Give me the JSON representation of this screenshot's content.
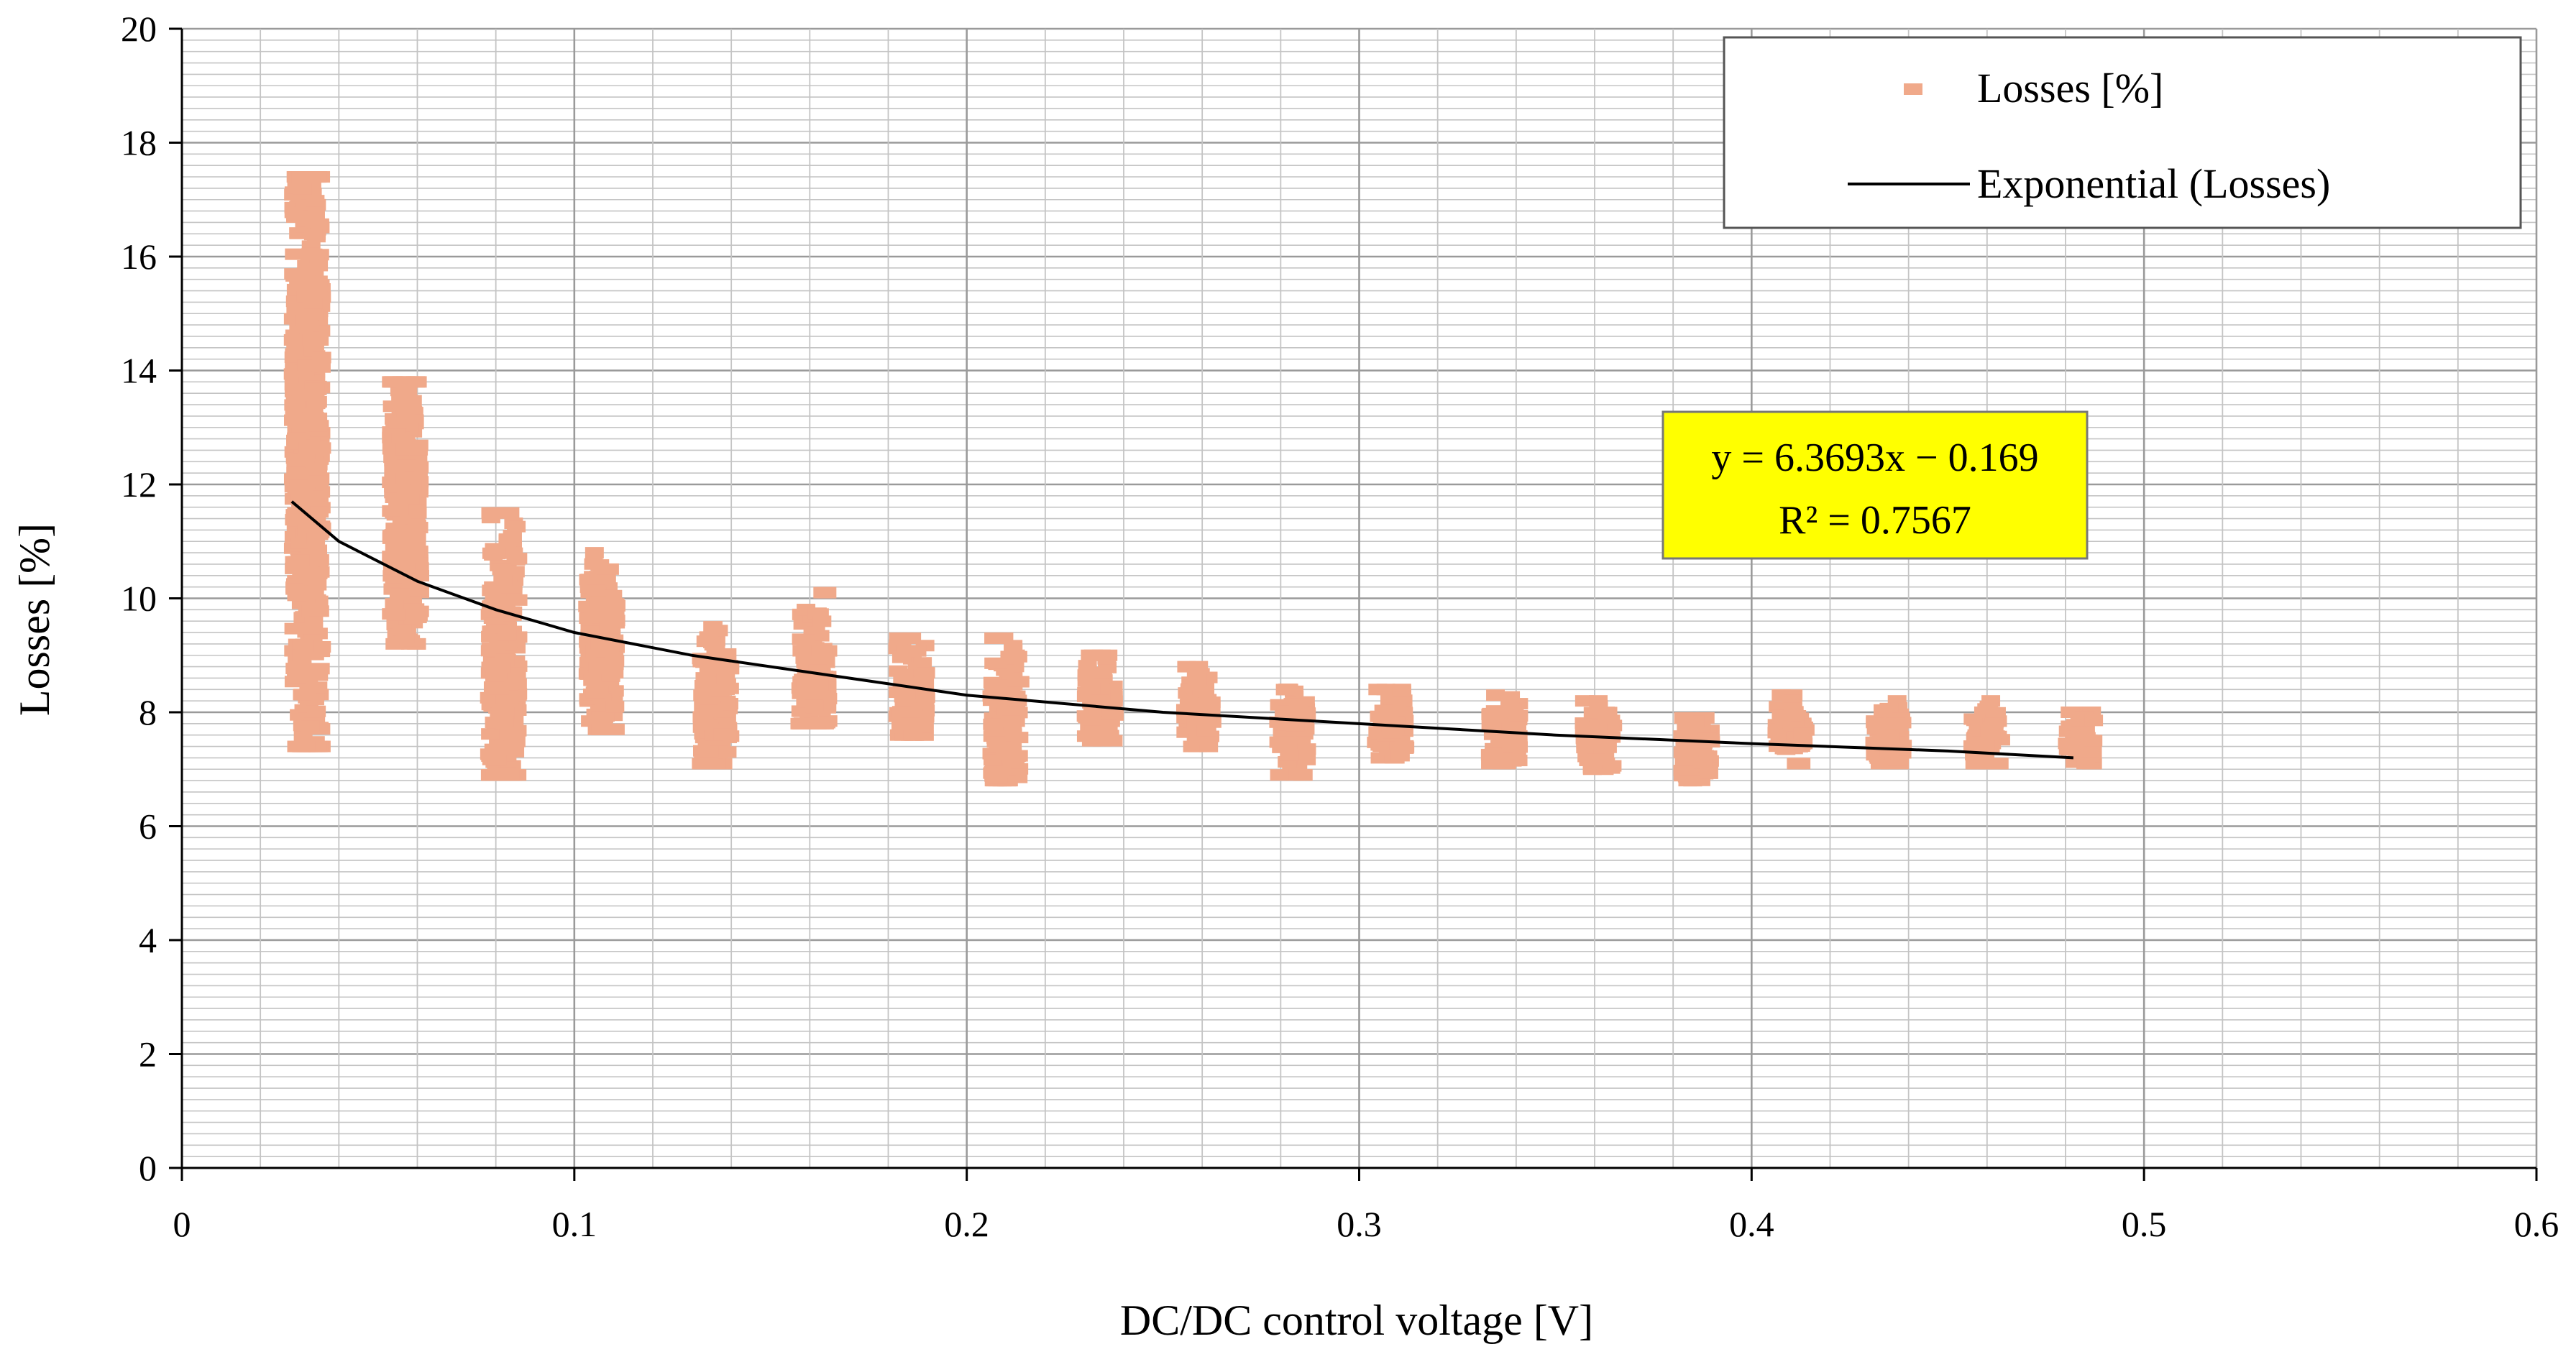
{
  "chart_data": {
    "type": "scatter",
    "xlabel": "DC/DC control voltage [V]",
    "ylabel": "Losses [%]",
    "xlim": [
      0,
      0.6
    ],
    "ylim": [
      0,
      20
    ],
    "x_ticks": [
      "0",
      "0.1",
      "0.2",
      "0.3",
      "0.4",
      "0.5",
      "0.6"
    ],
    "y_ticks": [
      "0",
      "2",
      "4",
      "6",
      "8",
      "10",
      "12",
      "14",
      "16",
      "18",
      "20"
    ],
    "grid": true,
    "legend_position": "top-right",
    "legend": [
      "Losses [%]",
      "Exponential (Losses)"
    ],
    "colors": {
      "points": "#f0a98a",
      "trend": "#000000",
      "equation_box": "#ffff00"
    },
    "clusters": [
      {
        "x": 0.032,
        "y_min": 7.4,
        "y_max": 17.4,
        "center": 12.8
      },
      {
        "x": 0.057,
        "y_min": 9.2,
        "y_max": 13.8,
        "center": 11.3
      },
      {
        "x": 0.082,
        "y_min": 6.9,
        "y_max": 11.5,
        "center": 8.6
      },
      {
        "x": 0.107,
        "y_min": 7.7,
        "y_max": 10.8,
        "center": 9.1
      },
      {
        "x": 0.136,
        "y_min": 7.1,
        "y_max": 9.5,
        "center": 8.1
      },
      {
        "x": 0.161,
        "y_min": 7.8,
        "y_max": 10.1,
        "center": 8.6
      },
      {
        "x": 0.186,
        "y_min": 7.6,
        "y_max": 9.3,
        "center": 8.4
      },
      {
        "x": 0.21,
        "y_min": 6.8,
        "y_max": 9.3,
        "center": 7.9
      },
      {
        "x": 0.234,
        "y_min": 7.5,
        "y_max": 9.0,
        "center": 8.2
      },
      {
        "x": 0.259,
        "y_min": 7.4,
        "y_max": 8.8,
        "center": 8.0
      },
      {
        "x": 0.283,
        "y_min": 6.9,
        "y_max": 8.4,
        "center": 7.6
      },
      {
        "x": 0.308,
        "y_min": 7.2,
        "y_max": 8.4,
        "center": 7.8
      },
      {
        "x": 0.337,
        "y_min": 7.1,
        "y_max": 8.3,
        "center": 7.6
      },
      {
        "x": 0.361,
        "y_min": 7.0,
        "y_max": 8.2,
        "center": 7.6
      },
      {
        "x": 0.386,
        "y_min": 6.8,
        "y_max": 7.9,
        "center": 7.3
      },
      {
        "x": 0.41,
        "y_min": 7.1,
        "y_max": 8.3,
        "center": 7.7
      },
      {
        "x": 0.435,
        "y_min": 7.1,
        "y_max": 8.2,
        "center": 7.6
      },
      {
        "x": 0.46,
        "y_min": 7.1,
        "y_max": 8.2,
        "center": 7.5
      },
      {
        "x": 0.484,
        "y_min": 7.1,
        "y_max": 8.0,
        "center": 7.5
      }
    ],
    "trendline": {
      "name": "Exponential (Losses)",
      "points": [
        [
          0.028,
          11.7
        ],
        [
          0.04,
          11.0
        ],
        [
          0.06,
          10.3
        ],
        [
          0.08,
          9.8
        ],
        [
          0.1,
          9.4
        ],
        [
          0.13,
          9.0
        ],
        [
          0.16,
          8.7
        ],
        [
          0.2,
          8.3
        ],
        [
          0.25,
          8.0
        ],
        [
          0.3,
          7.8
        ],
        [
          0.35,
          7.6
        ],
        [
          0.4,
          7.45
        ],
        [
          0.45,
          7.32
        ],
        [
          0.482,
          7.2
        ]
      ]
    },
    "equation": "y = 6.3693x − 0.169",
    "r_squared": "R² = 0.7567"
  }
}
